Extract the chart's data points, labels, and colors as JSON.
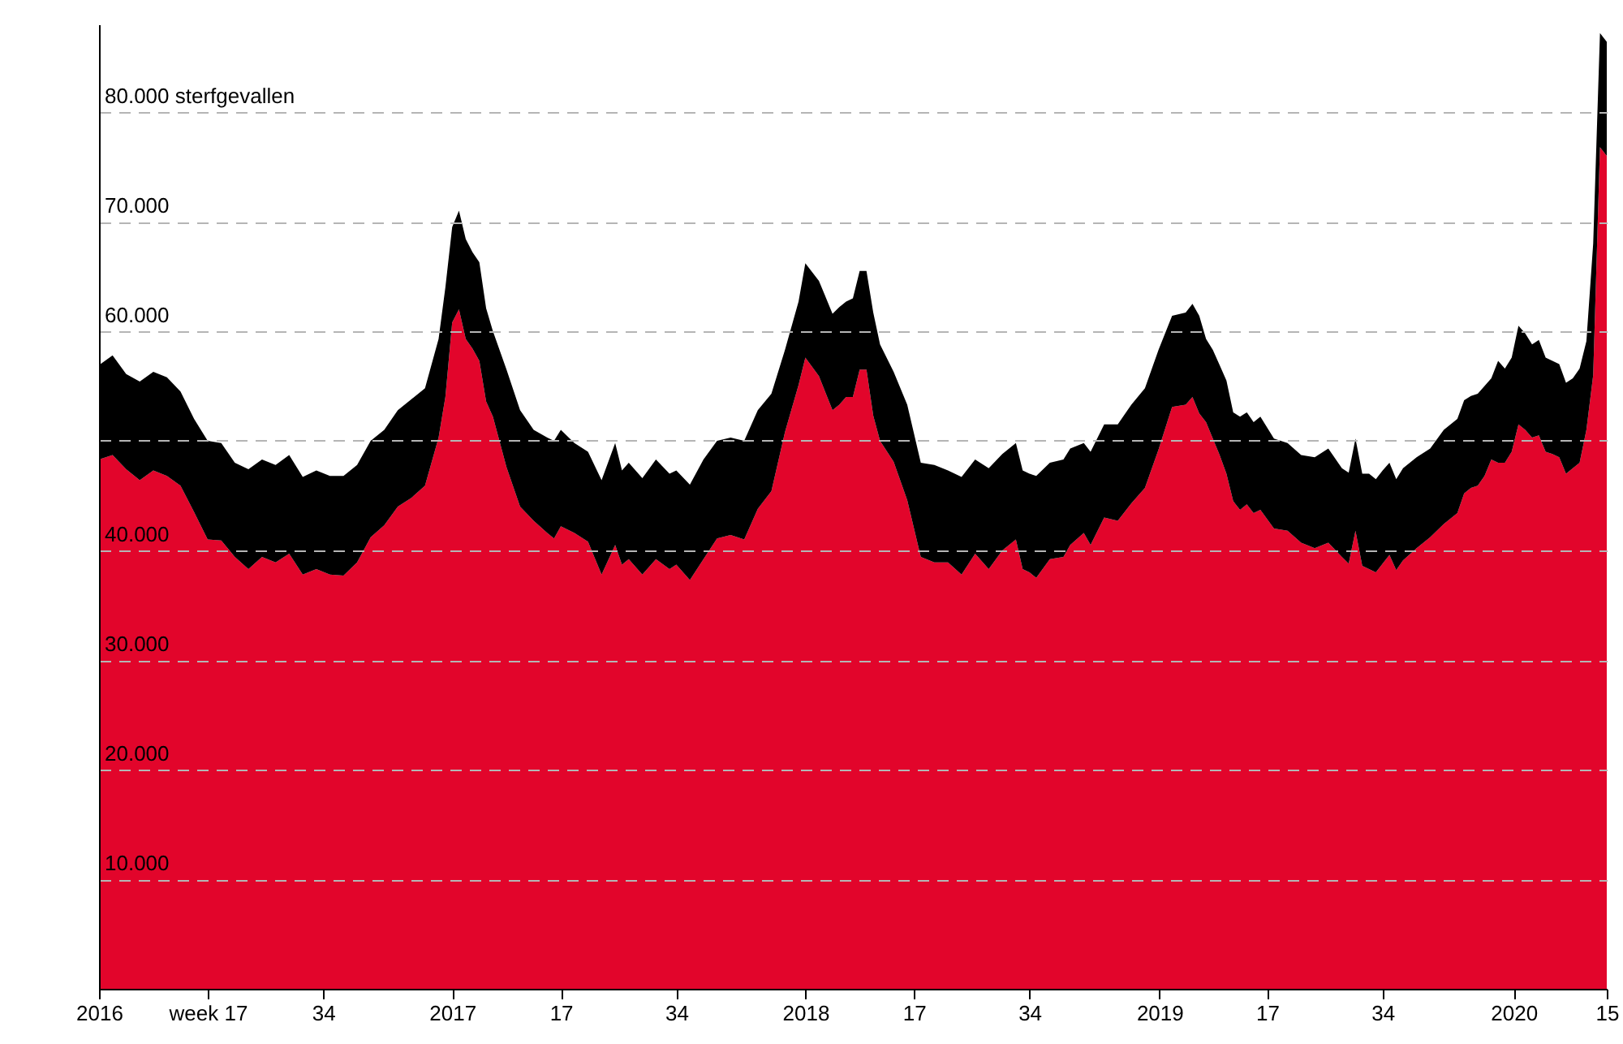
{
  "chart_data": {
    "type": "area",
    "stacked": true,
    "grid": "y",
    "x": [
      "2016-01-04",
      "2016-01-18",
      "2016-02-01",
      "2016-02-15",
      "2016-02-29",
      "2016-03-14",
      "2016-03-28",
      "2016-04-11",
      "2016-04-25",
      "2016-05-09",
      "2016-05-23",
      "2016-06-06",
      "2016-06-20",
      "2016-07-04",
      "2016-07-18",
      "2016-08-01",
      "2016-08-15",
      "2016-08-29",
      "2016-09-12",
      "2016-09-26",
      "2016-10-10",
      "2016-10-24",
      "2016-11-07",
      "2016-11-21",
      "2016-12-05",
      "2016-12-19",
      "2016-12-26",
      "2017-01-02",
      "2017-01-09",
      "2017-01-16",
      "2017-01-23",
      "2017-01-30",
      "2017-02-06",
      "2017-02-13",
      "2017-02-27",
      "2017-03-13",
      "2017-03-27",
      "2017-04-10",
      "2017-04-17",
      "2017-04-24",
      "2017-05-08",
      "2017-05-22",
      "2017-06-05",
      "2017-06-19",
      "2017-06-26",
      "2017-07-03",
      "2017-07-17",
      "2017-07-31",
      "2017-08-14",
      "2017-08-21",
      "2017-09-04",
      "2017-09-18",
      "2017-10-02",
      "2017-10-16",
      "2017-10-30",
      "2017-11-13",
      "2017-11-27",
      "2017-12-11",
      "2017-12-25",
      "2018-01-01",
      "2018-01-15",
      "2018-01-29",
      "2018-02-05",
      "2018-02-12",
      "2018-02-19",
      "2018-02-26",
      "2018-03-05",
      "2018-03-12",
      "2018-03-19",
      "2018-04-02",
      "2018-04-16",
      "2018-04-30",
      "2018-05-14",
      "2018-05-28",
      "2018-06-11",
      "2018-06-25",
      "2018-07-09",
      "2018-07-23",
      "2018-08-06",
      "2018-08-13",
      "2018-08-20",
      "2018-08-27",
      "2018-09-10",
      "2018-09-24",
      "2018-10-01",
      "2018-10-15",
      "2018-10-22",
      "2018-11-05",
      "2018-11-19",
      "2018-12-03",
      "2018-12-17",
      "2018-12-31",
      "2019-01-14",
      "2019-01-28",
      "2019-02-04",
      "2019-02-11",
      "2019-02-18",
      "2019-02-25",
      "2019-03-04",
      "2019-03-11",
      "2019-03-18",
      "2019-03-25",
      "2019-04-01",
      "2019-04-08",
      "2019-04-15",
      "2019-04-29",
      "2019-05-13",
      "2019-05-27",
      "2019-06-10",
      "2019-06-24",
      "2019-07-08",
      "2019-07-15",
      "2019-07-22",
      "2019-07-29",
      "2019-08-05",
      "2019-08-12",
      "2019-08-19",
      "2019-08-26",
      "2019-09-02",
      "2019-09-09",
      "2019-09-23",
      "2019-10-07",
      "2019-10-21",
      "2019-11-04",
      "2019-11-11",
      "2019-11-18",
      "2019-11-25",
      "2019-12-02",
      "2019-12-09",
      "2019-12-16",
      "2019-12-23",
      "2019-12-30",
      "2020-01-06",
      "2020-01-13",
      "2020-01-20",
      "2020-01-27",
      "2020-02-03",
      "2020-02-10",
      "2020-02-17",
      "2020-02-24",
      "2020-03-02",
      "2020-03-09",
      "2020-03-16",
      "2020-03-23",
      "2020-03-30",
      "2020-04-06"
    ],
    "xlim": [
      "2016-01-04",
      "2020-04-06"
    ],
    "xticks": [
      {
        "value": "2016-01-04",
        "label": "2016"
      },
      {
        "value": "2016-04-25",
        "label": "week 17"
      },
      {
        "value": "2016-08-22",
        "label": "34"
      },
      {
        "value": "2017-01-02",
        "label": "2017"
      },
      {
        "value": "2017-04-24",
        "label": "17"
      },
      {
        "value": "2017-08-21",
        "label": "34"
      },
      {
        "value": "2018-01-01",
        "label": "2018"
      },
      {
        "value": "2018-04-23",
        "label": "17"
      },
      {
        "value": "2018-08-20",
        "label": "34"
      },
      {
        "value": "2019-01-01",
        "label": "2019"
      },
      {
        "value": "2019-04-22",
        "label": "17"
      },
      {
        "value": "2019-08-19",
        "label": "34"
      },
      {
        "value": "2020-01-01",
        "label": "2020"
      },
      {
        "value": "2020-04-06",
        "label": "15"
      }
    ],
    "ylim": [
      0,
      88000
    ],
    "yticks": [
      {
        "value": 10000,
        "label": "10.000"
      },
      {
        "value": 20000,
        "label": "20.000"
      },
      {
        "value": 30000,
        "label": "30.000"
      },
      {
        "value": 40000,
        "label": "40.000"
      },
      {
        "value": 50000,
        "label": null
      },
      {
        "value": 60000,
        "label": "60.000"
      },
      {
        "value": 70000,
        "label": "70.000"
      },
      {
        "value": 80000,
        "label": "80.000 sterfgevallen"
      }
    ],
    "series": [
      {
        "color": "#e2052b",
        "values": [
          48300,
          48700,
          47400,
          46400,
          47300,
          46800,
          45900,
          43500,
          41000,
          40900,
          39400,
          38300,
          39400,
          38900,
          39700,
          37800,
          38300,
          37800,
          37700,
          38900,
          41200,
          42300,
          44000,
          44800,
          45900,
          50300,
          54000,
          60800,
          62000,
          59300,
          58400,
          57300,
          53600,
          52200,
          47600,
          44000,
          42700,
          41600,
          41100,
          42200,
          41600,
          40800,
          37800,
          40500,
          38700,
          39200,
          37800,
          39200,
          38300,
          38700,
          37300,
          39200,
          41100,
          41400,
          41000,
          43800,
          45400,
          50800,
          55100,
          57600,
          55900,
          52800,
          53300,
          54000,
          54000,
          56500,
          56500,
          52300,
          50000,
          48100,
          44600,
          39400,
          38900,
          38900,
          37800,
          39700,
          38300,
          40000,
          41000,
          38300,
          38000,
          37500,
          39200,
          39400,
          40500,
          41600,
          40500,
          43000,
          42700,
          44300,
          45700,
          49200,
          53100,
          53300,
          54000,
          52500,
          51700,
          50200,
          48700,
          47000,
          44500,
          43700,
          44200,
          43400,
          43700,
          42000,
          41800,
          40700,
          40200,
          40700,
          39400,
          38800,
          41800,
          38600,
          38300,
          38000,
          38800,
          39600,
          38200,
          39100,
          40200,
          41200,
          42400,
          43400,
          45200,
          45700,
          45900,
          46800,
          48300,
          48000,
          48000,
          49000,
          51500,
          51000,
          50300,
          50500,
          49000,
          48800,
          48500,
          47000,
          47500,
          48000,
          51000,
          56000,
          76800,
          76000
        ]
      },
      {
        "color": "#000000",
        "values": [
          8600,
          9100,
          8700,
          9000,
          9000,
          9000,
          8600,
          8500,
          9000,
          8900,
          8600,
          9100,
          8900,
          8900,
          9000,
          8900,
          9000,
          9000,
          9100,
          8900,
          8800,
          8700,
          8800,
          9000,
          8900,
          9000,
          10000,
          8700,
          9000,
          9100,
          8800,
          9000,
          8500,
          7800,
          8900,
          8800,
          8300,
          8700,
          8900,
          8800,
          8200,
          8200,
          8600,
          9300,
          8600,
          8800,
          8800,
          9100,
          8700,
          8600,
          8700,
          9100,
          8900,
          8900,
          9000,
          9000,
          8900,
          7500,
          7600,
          8600,
          8700,
          8800,
          8900,
          8700,
          9000,
          9000,
          9000,
          9400,
          8800,
          8200,
          8700,
          8600,
          8900,
          8400,
          8900,
          8600,
          9200,
          8800,
          8800,
          9000,
          9000,
          9300,
          8800,
          8900,
          8800,
          8200,
          8500,
          8500,
          8800,
          9000,
          9100,
          9100,
          8300,
          8400,
          8500,
          8900,
          7600,
          8100,
          8200,
          8500,
          8100,
          8500,
          8400,
          8300,
          8500,
          8200,
          8000,
          8000,
          8300,
          8600,
          8100,
          8300,
          8400,
          8400,
          8700,
          8500,
          8500,
          8400,
          8300,
          8400,
          8300,
          8100,
          8600,
          8600,
          8500,
          8400,
          8400,
          8200,
          7400,
          9300,
          8600,
          8600,
          9000,
          8800,
          8500,
          8700,
          8600,
          8500,
          8500,
          8300,
          8200,
          8600,
          8100,
          12000,
          10400,
          10400
        ]
      }
    ]
  }
}
